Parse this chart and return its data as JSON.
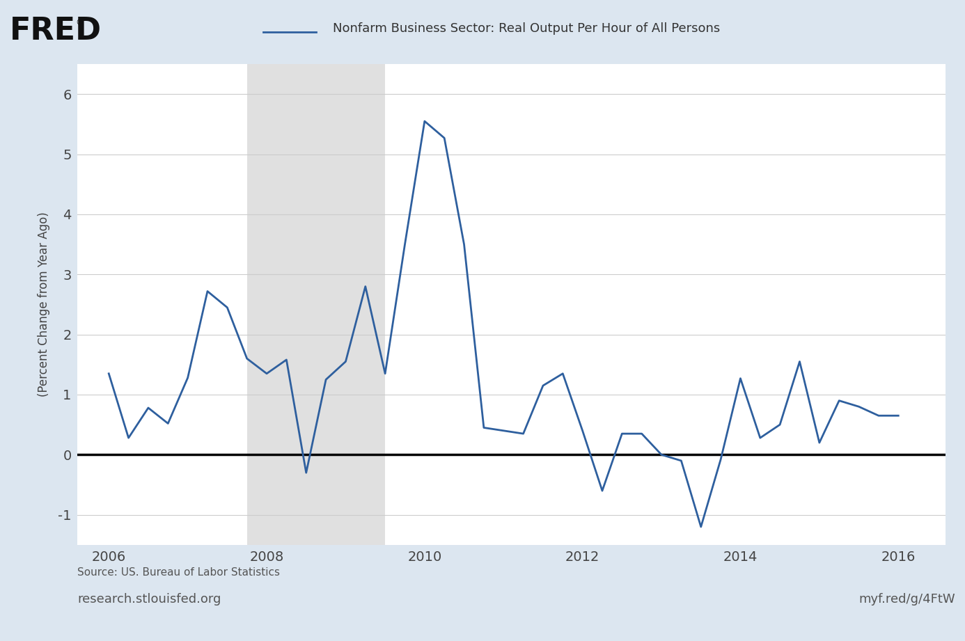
{
  "title": "Nonfarm Business Sector: Real Output Per Hour of All Persons",
  "ylabel": "(Percent Change from Year Ago)",
  "source_line1": "Source: US. Bureau of Labor Statistics",
  "source_line2": "research.stlouisfed.org",
  "watermark": "myf.red/g/4FtW",
  "background_color": "#dce6f0",
  "plot_background_color": "#ffffff",
  "recession_color": "#e0e0e0",
  "recession_start": 2007.75,
  "recession_end": 2009.5,
  "line_color": "#2E5F9E",
  "zero_line_color": "#000000",
  "ylim": [
    -1.5,
    6.5
  ],
  "yticks": [
    -1,
    0,
    1,
    2,
    3,
    4,
    5,
    6
  ],
  "xlim": [
    2005.6,
    2016.6
  ],
  "xticks": [
    2006,
    2008,
    2010,
    2012,
    2014,
    2016
  ],
  "dates": [
    2006.0,
    2006.25,
    2006.5,
    2006.75,
    2007.0,
    2007.25,
    2007.5,
    2007.75,
    2008.0,
    2008.25,
    2008.5,
    2008.75,
    2009.0,
    2009.25,
    2009.5,
    2009.75,
    2010.0,
    2010.25,
    2010.5,
    2010.75,
    2011.0,
    2011.25,
    2011.5,
    2011.75,
    2012.0,
    2012.25,
    2012.5,
    2012.75,
    2013.0,
    2013.25,
    2013.5,
    2013.75,
    2014.0,
    2014.25,
    2014.5,
    2014.75,
    2015.0,
    2015.25,
    2015.5,
    2015.75,
    2016.0
  ],
  "values": [
    1.35,
    0.28,
    0.78,
    0.52,
    1.28,
    2.72,
    2.45,
    1.6,
    1.35,
    1.58,
    -0.3,
    1.25,
    1.55,
    2.8,
    1.35,
    3.5,
    5.55,
    5.27,
    3.5,
    0.45,
    0.4,
    0.35,
    1.15,
    1.35,
    0.4,
    -0.6,
    0.35,
    0.35,
    0.0,
    -0.1,
    -1.2,
    -0.08,
    1.27,
    0.28,
    0.5,
    1.55,
    0.2,
    0.9,
    0.8,
    0.65,
    0.65
  ]
}
